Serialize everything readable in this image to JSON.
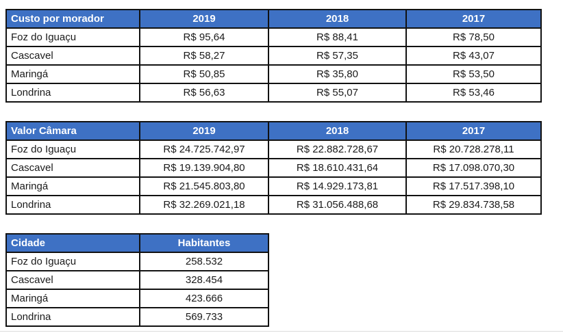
{
  "colors": {
    "header_bg": "#3E71C4",
    "header_text": "#FFFFFF",
    "border": "#111111",
    "cell_bg": "#FFFFFF",
    "body_text": "#1A1A1A"
  },
  "tables": [
    {
      "name": "custo-por-morador",
      "header": [
        "Custo por morador",
        "2019",
        "2018",
        "2017"
      ],
      "rows": [
        [
          "Foz do Iguaçu",
          "R$ 95,64",
          "R$ 88,41",
          "R$ 78,50"
        ],
        [
          "Cascavel",
          "R$ 58,27",
          "R$ 57,35",
          "R$ 43,07"
        ],
        [
          "Maringá",
          "R$ 50,85",
          "R$ 35,80",
          "R$ 53,50"
        ],
        [
          "Londrina",
          "R$ 56,63",
          "R$ 55,07",
          "R$ 53,46"
        ]
      ]
    },
    {
      "name": "valor-camara",
      "header": [
        "Valor Câmara",
        "2019",
        "2018",
        "2017"
      ],
      "rows": [
        [
          "Foz do Iguaçu",
          "R$ 24.725.742,97",
          "R$ 22.882.728,67",
          "R$ 20.728.278,11"
        ],
        [
          "Cascavel",
          "R$ 19.139.904,80",
          "R$ 18.610.431,64",
          "R$ 17.098.070,30"
        ],
        [
          "Maringá",
          "R$ 21.545.803,80",
          "R$ 14.929.173,81",
          "R$ 17.517.398,10"
        ],
        [
          "Londrina",
          "R$ 32.269.021,18",
          "R$ 31.056.488,68",
          "R$ 29.834.738,58"
        ]
      ]
    },
    {
      "name": "habitantes",
      "header": [
        "Cidade",
        "Habitantes"
      ],
      "rows": [
        [
          "Foz do Iguaçu",
          "258.532"
        ],
        [
          "Cascavel",
          "328.454"
        ],
        [
          "Maringá",
          "423.666"
        ],
        [
          "Londrina",
          "569.733"
        ]
      ]
    }
  ]
}
